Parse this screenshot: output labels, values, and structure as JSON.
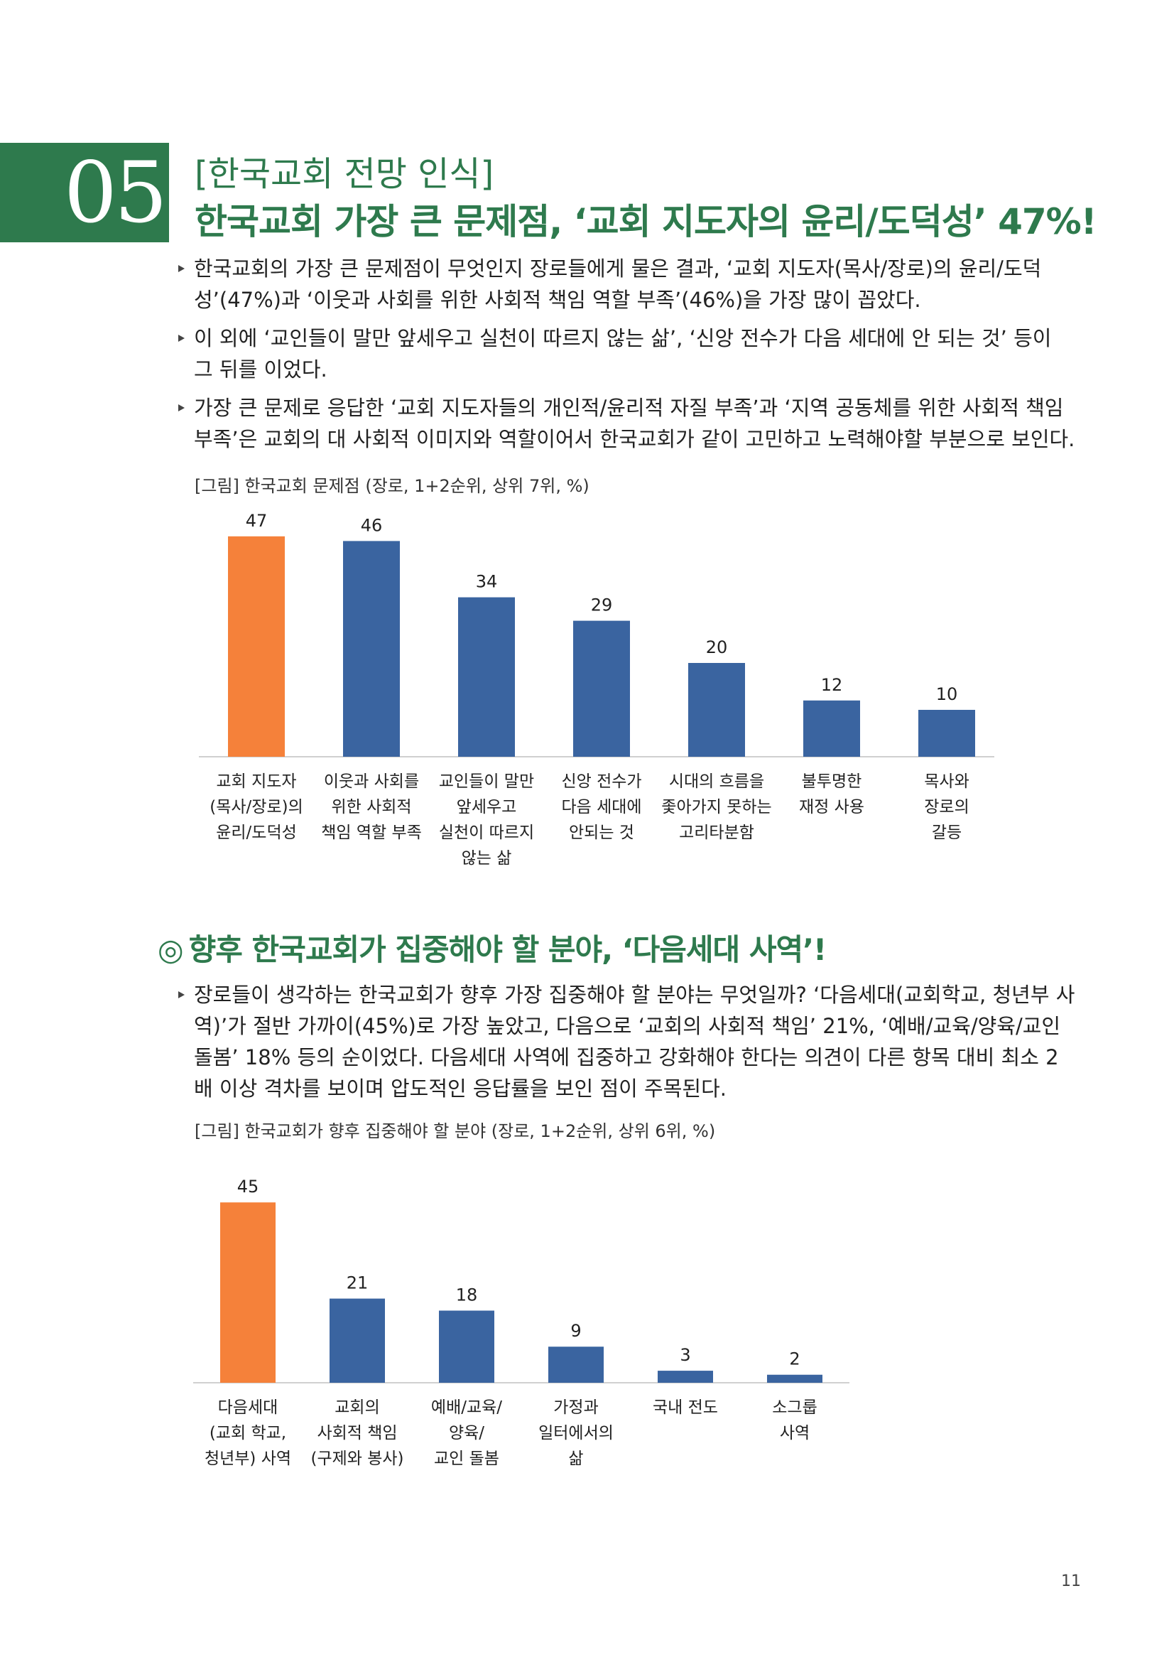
{
  "section": {
    "number": "05",
    "kicker": "[한국교회 전망 인식]",
    "title": "한국교회 가장 큰 문제점, ‘교회 지도자의 윤리/도덕성’ 47%!"
  },
  "bullets1": [
    "한국교회의 가장 큰 문제점이 무엇인지 장로들에게 물은 결과, ‘교회 지도자(목사/장로)의 윤리/도덕성’(47%)과 ‘이웃과 사회를 위한 사회적 책임 역할 부족’(46%)을 가장 많이 꼽았다.",
    "이 외에 ‘교인들이 말만 앞세우고 실천이 따르지 않는 삶’, ‘신앙 전수가 다음 세대에 안 되는 것’ 등이 그 뒤를 이었다.",
    "가장 큰 문제로 응답한 ‘교회 지도자들의 개인적/윤리적 자질 부족’과 ‘지역 공동체를 위한 사회적 책임 부족’은 교회의 대 사회적 이미지와 역할이어서 한국교회가 같이 고민하고 노력해야할 부분으로 보인다."
  ],
  "figure1_caption": "[그림] 한국교회 문제점 (장로, 1+2순위, 상위 7위, %)",
  "subheading": {
    "mark": "◎",
    "text": "향후 한국교회가 집중해야 할 분야, ‘다음세대 사역’!"
  },
  "bullets2": [
    "장로들이 생각하는 한국교회가 향후 가장 집중해야 할 분야는 무엇일까? ‘다음세대(교회학교, 청년부 사역)’가 절반 가까이(45%)로 가장 높았고, 다음으로 ‘교회의 사회적 책임’ 21%, ‘예배/교육/양육/교인 돌봄’ 18% 등의 순이었다. 다음세대 사역에 집중하고 강화해야 한다는 의견이 다른 항목 대비 최소 2배 이상 격차를 보이며 압도적인 응답률을 보인 점이 주목된다."
  ],
  "figure2_caption": "[그림] 한국교회가 향후 집중해야 할 분야 (장로, 1+2순위, 상위 6위, %)",
  "colors": {
    "accent": "#2e7a4d",
    "highlight_bar": "#f5813a",
    "bar": "#3a64a0"
  },
  "chart_data": [
    {
      "type": "bar",
      "categories": [
        [
          "교회 지도자",
          "(목사/장로)의",
          "윤리/도덕성"
        ],
        [
          "이웃과 사회를",
          "위한 사회적",
          "책임 역할 부족"
        ],
        [
          "교인들이 말만",
          "앞세우고",
          "실천이 따르지",
          "않는 삶"
        ],
        [
          "신앙 전수가",
          "다음 세대에",
          "안되는 것"
        ],
        [
          "시대의 흐름을",
          "좇아가지 못하는",
          "고리타분함"
        ],
        [
          "불투명한",
          "재정 사용"
        ],
        [
          "목사와",
          "장로의",
          "갈등"
        ]
      ],
      "values": [
        47,
        46,
        34,
        29,
        20,
        12,
        10
      ],
      "value_labels": [
        "47",
        "46",
        "34",
        "29",
        "20",
        "12",
        "10"
      ],
      "highlight_index": 0,
      "ylim": [
        0,
        50
      ]
    },
    {
      "type": "bar",
      "categories": [
        [
          "다음세대",
          "(교회 학교,",
          "청년부) 사역"
        ],
        [
          "교회의",
          "사회적 책임",
          "(구제와 봉사)"
        ],
        [
          "예배/교육/",
          "양육/",
          "교인 돌봄"
        ],
        [
          "가정과",
          "일터에서의",
          "삶"
        ],
        [
          "국내 전도"
        ],
        [
          "소그룹",
          "사역"
        ]
      ],
      "values": [
        45,
        21,
        18,
        9,
        3,
        2
      ],
      "value_labels": [
        "45",
        "21",
        "18",
        "9",
        "3",
        "2"
      ],
      "highlight_index": 0,
      "ylim": [
        0,
        50
      ]
    }
  ],
  "page_number": "11"
}
